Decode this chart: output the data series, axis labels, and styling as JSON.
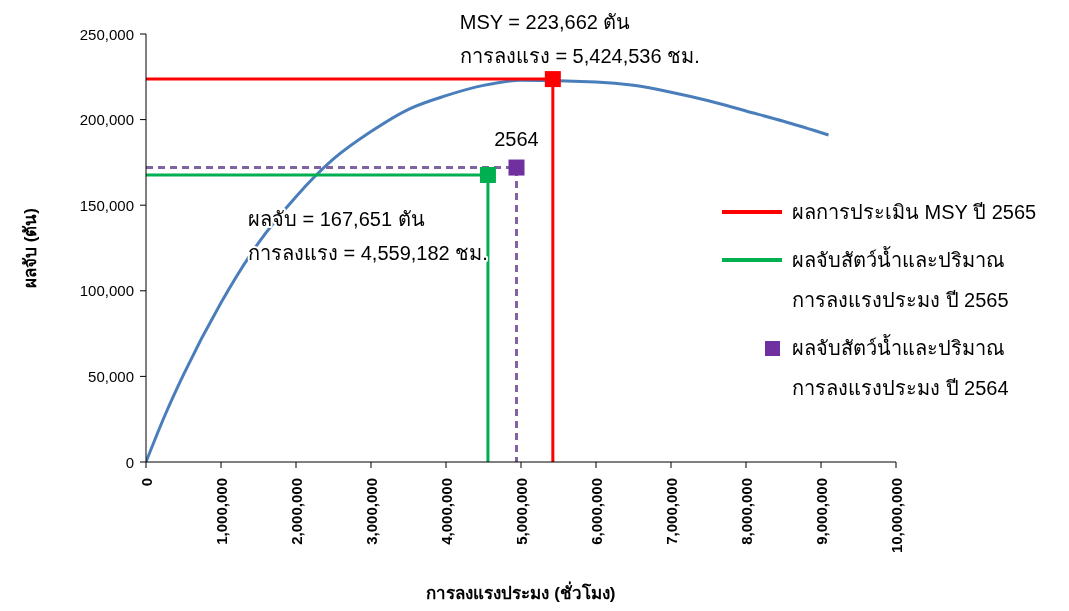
{
  "chart_data": {
    "type": "line",
    "xlabel": "การลงแรงประมง (ชั่วโมง)",
    "ylabel": "ผลจับ (ตัน)",
    "xlim": [
      0,
      10000000
    ],
    "xticks": [
      {
        "value": 0,
        "label": "0"
      },
      {
        "value": 1000000,
        "label": "1,000,000"
      },
      {
        "value": 2000000,
        "label": "2,000,000"
      },
      {
        "value": 3000000,
        "label": "3,000,000"
      },
      {
        "value": 4000000,
        "label": "4,000,000"
      },
      {
        "value": 5000000,
        "label": "5,000,000"
      },
      {
        "value": 6000000,
        "label": "6,000,000"
      },
      {
        "value": 7000000,
        "label": "7,000,000"
      },
      {
        "value": 8000000,
        "label": "8,000,000"
      },
      {
        "value": 9000000,
        "label": "9,000,000"
      },
      {
        "value": 10000000,
        "label": "10,000,000"
      }
    ],
    "ylim": [
      0,
      250000
    ],
    "yticks": [
      {
        "value": 0,
        "label": "0"
      },
      {
        "value": 50000,
        "label": "50,000"
      },
      {
        "value": 100000,
        "label": "100,000"
      },
      {
        "value": 150000,
        "label": "150,000"
      },
      {
        "value": 200000,
        "label": "200,000"
      },
      {
        "value": 250000,
        "label": "250,000"
      }
    ],
    "grid": false,
    "legend": "right",
    "marker": "none",
    "line_style": "solid",
    "series": [
      {
        "type": "line",
        "color": "#4a7ebb",
        "x": [
          0,
          250000,
          500000,
          1000000,
          1500000,
          2000000,
          2500000,
          3000000,
          3500000,
          4000000,
          4500000,
          5000000,
          6000000,
          6500000,
          7000000,
          7500000,
          8000000,
          8500000,
          9100000
        ],
        "values": [
          0,
          27000,
          51000,
          93000,
          128000,
          155000,
          177000,
          193000,
          206000,
          214000,
          220000,
          223000,
          222000,
          220000,
          216000,
          211000,
          205000,
          199000,
          191000
        ]
      },
      {
        "type": "line",
        "name": "ผลการประเมิน MSY ปี 2565",
        "color": "#ff0000",
        "x": [
          0,
          5424536,
          5424536
        ],
        "values": [
          223662,
          223662,
          0
        ]
      },
      {
        "type": "scatter",
        "color": "#ff0000",
        "marker": "square",
        "x": [
          5424536
        ],
        "values": [
          223662
        ]
      },
      {
        "type": "line",
        "name": "ผลจับสัตว์น้ำและปริมาณ\nการลงแรงประมง ปี 2565",
        "color": "#00b050",
        "x": [
          0,
          4559182,
          4559182
        ],
        "values": [
          167651,
          167651,
          0
        ]
      },
      {
        "type": "scatter",
        "color": "#00b050",
        "marker": "square",
        "x": [
          4559182
        ],
        "values": [
          167651
        ]
      },
      {
        "type": "line",
        "color": "#8064a2",
        "line_style": "dashed",
        "x": [
          0,
          4940000,
          4940000
        ],
        "values": [
          172000,
          172000,
          0
        ]
      },
      {
        "type": "scatter",
        "name": "ผลจับสัตว์น้ำและปริมาณ\nการลงแรงประมง ปี 2564",
        "color": "#7030a0",
        "marker": "square",
        "x": [
          4940000
        ],
        "values": [
          172000
        ]
      }
    ],
    "annotations": [
      {
        "text": "MSY = 223,662 ตัน\nการลงแรง = 5,424,536 ชม.",
        "x": 5424536,
        "y": 223662
      },
      {
        "text": "2564",
        "x": 4940000,
        "y": 172000
      },
      {
        "text": "ผลจับ = 167,651 ตัน\nการลงแรง = 4,559,182 ชม.",
        "x": 4559182,
        "y": 167651
      }
    ]
  }
}
